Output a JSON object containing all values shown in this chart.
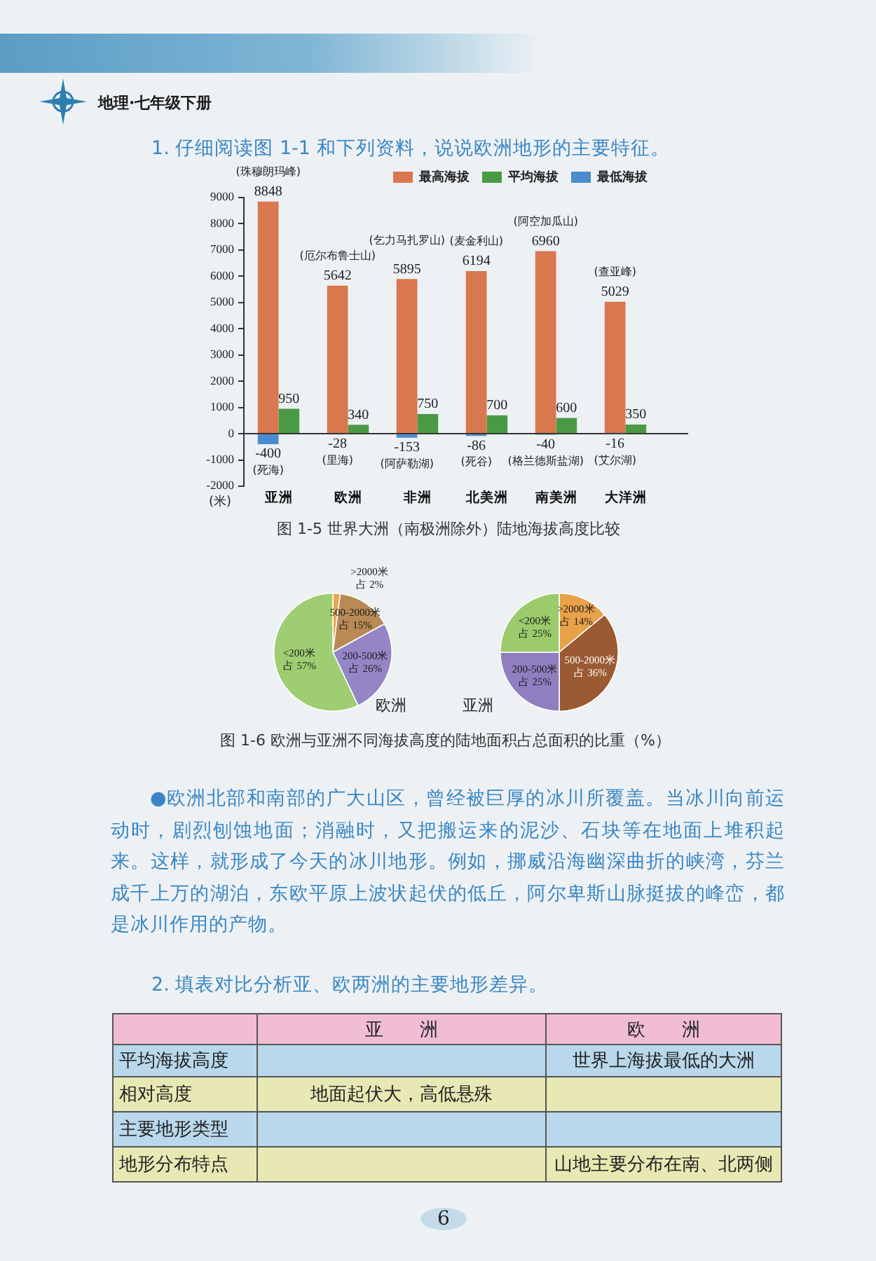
{
  "chart_data": [
    {
      "type": "other",
      "annotations": [
        "地理·七年级下册",
        "1. 仔细阅读图 1-1 和下列资料，说说欧洲地形的主要特征。"
      ]
    },
    {
      "type": "bar",
      "title": "图 1-5 世界大洲（南极洲除外）陆地海拔高度比较",
      "ylabel": "(米)",
      "categories": [
        "亚洲",
        "欧洲",
        "非洲",
        "北美洲",
        "南美洲",
        "大洋洲"
      ],
      "series": [
        {
          "name": "最高海拔",
          "color": "#d9774f",
          "values": [
            8848,
            5642,
            5895,
            6194,
            6960,
            5029
          ]
        },
        {
          "name": "平均海拔",
          "color": "#4a9a45",
          "values": [
            950,
            340,
            750,
            700,
            600,
            350
          ]
        },
        {
          "name": "最低海拔",
          "color": "#4a8ccf",
          "values": [
            -400,
            -28,
            -153,
            -86,
            -40,
            -16
          ]
        }
      ],
      "ylim": [
        -2000,
        9000
      ],
      "yticks": [
        -2000,
        -1000,
        0,
        1000,
        2000,
        3000,
        4000,
        5000,
        6000,
        7000,
        8000,
        9000
      ],
      "legend": "top right",
      "data_labels": true,
      "annotations": [
        {
          "text": "(珠穆朗玛峰)",
          "x": "亚洲",
          "y": 8848
        },
        {
          "text": "(厄尔布鲁士山)",
          "x": "欧洲",
          "y": 5642
        },
        {
          "text": "(乞力马扎罗山)",
          "x": "非洲",
          "y": 5895
        },
        {
          "text": "(麦金利山)",
          "x": "北美洲",
          "y": 6194
        },
        {
          "text": "(阿空加瓜山)",
          "x": "南美洲",
          "y": 6960
        },
        {
          "text": "(查亚峰)",
          "x": "大洋洲",
          "y": 5029
        },
        {
          "text": "(死海)",
          "x": "亚洲",
          "y": -400
        },
        {
          "text": "(里海)",
          "x": "欧洲",
          "y": -28
        },
        {
          "text": "(阿萨勒湖)",
          "x": "非洲",
          "y": -153
        },
        {
          "text": "(死谷)",
          "x": "北美洲",
          "y": -86
        },
        {
          "text": "(格兰德斯盐湖)",
          "x": "南美洲",
          "y": -40
        },
        {
          "text": "(艾尔湖)",
          "x": "大洋洲",
          "y": -16
        }
      ]
    },
    {
      "type": "pie",
      "title": "欧洲",
      "categories": [
        ">2000米",
        "500-2000米",
        "200-500米",
        "<200米"
      ],
      "values": [
        2,
        15,
        26,
        57
      ],
      "colors": [
        "#eba54e",
        "#b98a55",
        "#9486c6",
        "#9fcd72"
      ],
      "value_labels": [
        "占 2%",
        "占 15%",
        "占 26%",
        "占 57%"
      ]
    },
    {
      "type": "pie",
      "title": "亚洲",
      "categories": [
        ">2000米",
        "500-2000米",
        "200-500米",
        "<200米"
      ],
      "values": [
        14,
        36,
        25,
        25
      ],
      "colors": [
        "#e9a24a",
        "#9b5a32",
        "#8f7ec0",
        "#9ccb6c"
      ],
      "value_labels": [
        "占 14%",
        "占 36%",
        "占 25%",
        "占 25%"
      ]
    },
    {
      "type": "other",
      "annotations": [
        "图 1-6 欧洲与亚洲不同海拔高度的陆地面积占总面积的比重（%）",
        "●欧洲北部和南部的广大山区，曾经被巨厚的冰川所覆盖。当冰川向前运动时，剧烈刨蚀地面；消融时，又把搬运来的泥沙、石块等在地面上堆积起来。这样，就形成了今天的冰川地形。例如，挪威沿海幽深曲折的峡湾，芬兰成千上万的湖泊，东欧平原上波状起伏的低丘，阿尔卑斯山脉挺拔的峰峦，都是冰川作用的产物。",
        "2. 填表对比分析亚、欧两洲的主要地形差异。"
      ]
    },
    {
      "type": "other",
      "categories": [
        null,
        "亚洲",
        "欧洲"
      ],
      "y_categories": [
        "平均海拔高度",
        "相对高度",
        "主要地形类型",
        "地形分布特点"
      ],
      "cell_labels": [
        [
          null,
          "世界上海拔最低的大洲"
        ],
        [
          "地面起伏大，高低悬殊",
          null
        ],
        [
          null,
          null
        ],
        [
          null,
          "山地主要分布在南、北两侧"
        ]
      ],
      "annotations": [
        "6"
      ]
    }
  ]
}
